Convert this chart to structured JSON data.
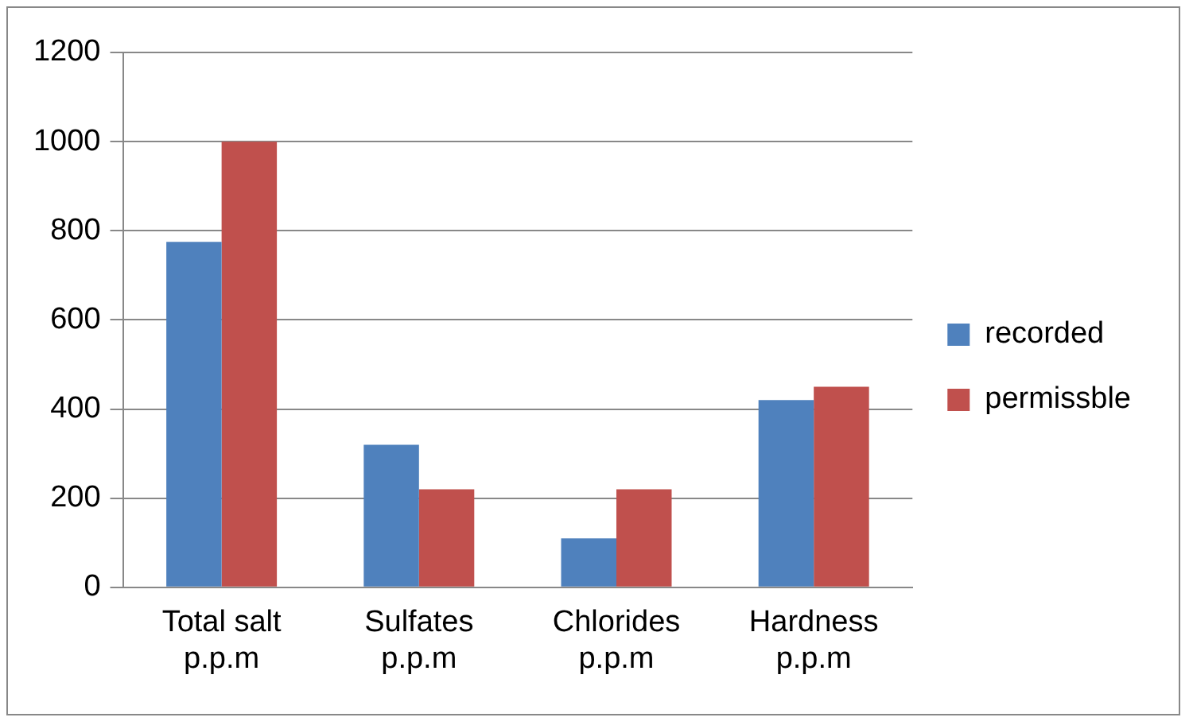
{
  "chart_data": {
    "type": "bar",
    "categories": [
      "Total salt p.p.m",
      "Sulfates p.p.m",
      "Chlorides p.p.m",
      "Hardness p.p.m"
    ],
    "series": [
      {
        "name": "recorded",
        "color": "#4f81bd",
        "values": [
          775,
          320,
          110,
          420
        ]
      },
      {
        "name": "permissble",
        "color": "#c0504d",
        "values": [
          1000,
          220,
          220,
          450
        ]
      }
    ],
    "ylim": [
      0,
      1200
    ],
    "yticks": [
      0,
      200,
      400,
      600,
      800,
      1000,
      1200
    ],
    "grid": "y",
    "legend": "right"
  }
}
